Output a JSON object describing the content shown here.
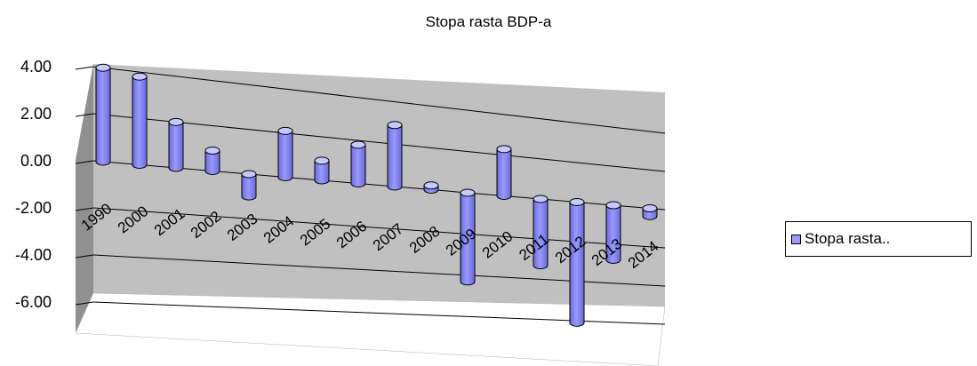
{
  "chart_data": {
    "type": "bar",
    "title": "Stopa rasta BDP-a",
    "categories": [
      "1990",
      "2000",
      "2001",
      "2002",
      "2003",
      "2004",
      "2005",
      "2006",
      "2007",
      "2008",
      "2009",
      "2010",
      "2011",
      "2012",
      "2013",
      "2014"
    ],
    "series": [
      {
        "name": "Stopa rasta..",
        "values": [
          4.0,
          3.8,
          2.0,
          0.9,
          -1.0,
          2.1,
          0.9,
          1.8,
          2.9,
          0.2,
          -4.3,
          2.3,
          -3.3,
          -6.1,
          -2.8,
          -0.4
        ]
      }
    ],
    "ylim": [
      -6,
      4
    ],
    "yticks": [
      "4.00",
      "2.00",
      "0.00",
      "-2.00",
      "-4.00",
      "-6.00"
    ],
    "grid": true,
    "legend_position": "right",
    "colors": {
      "bar": "#9999ff",
      "bar_top": "#c8c8ff",
      "bar_shade": "#6a6ad8",
      "wall": "#c0c0c0",
      "wall_side": "#909090"
    }
  }
}
